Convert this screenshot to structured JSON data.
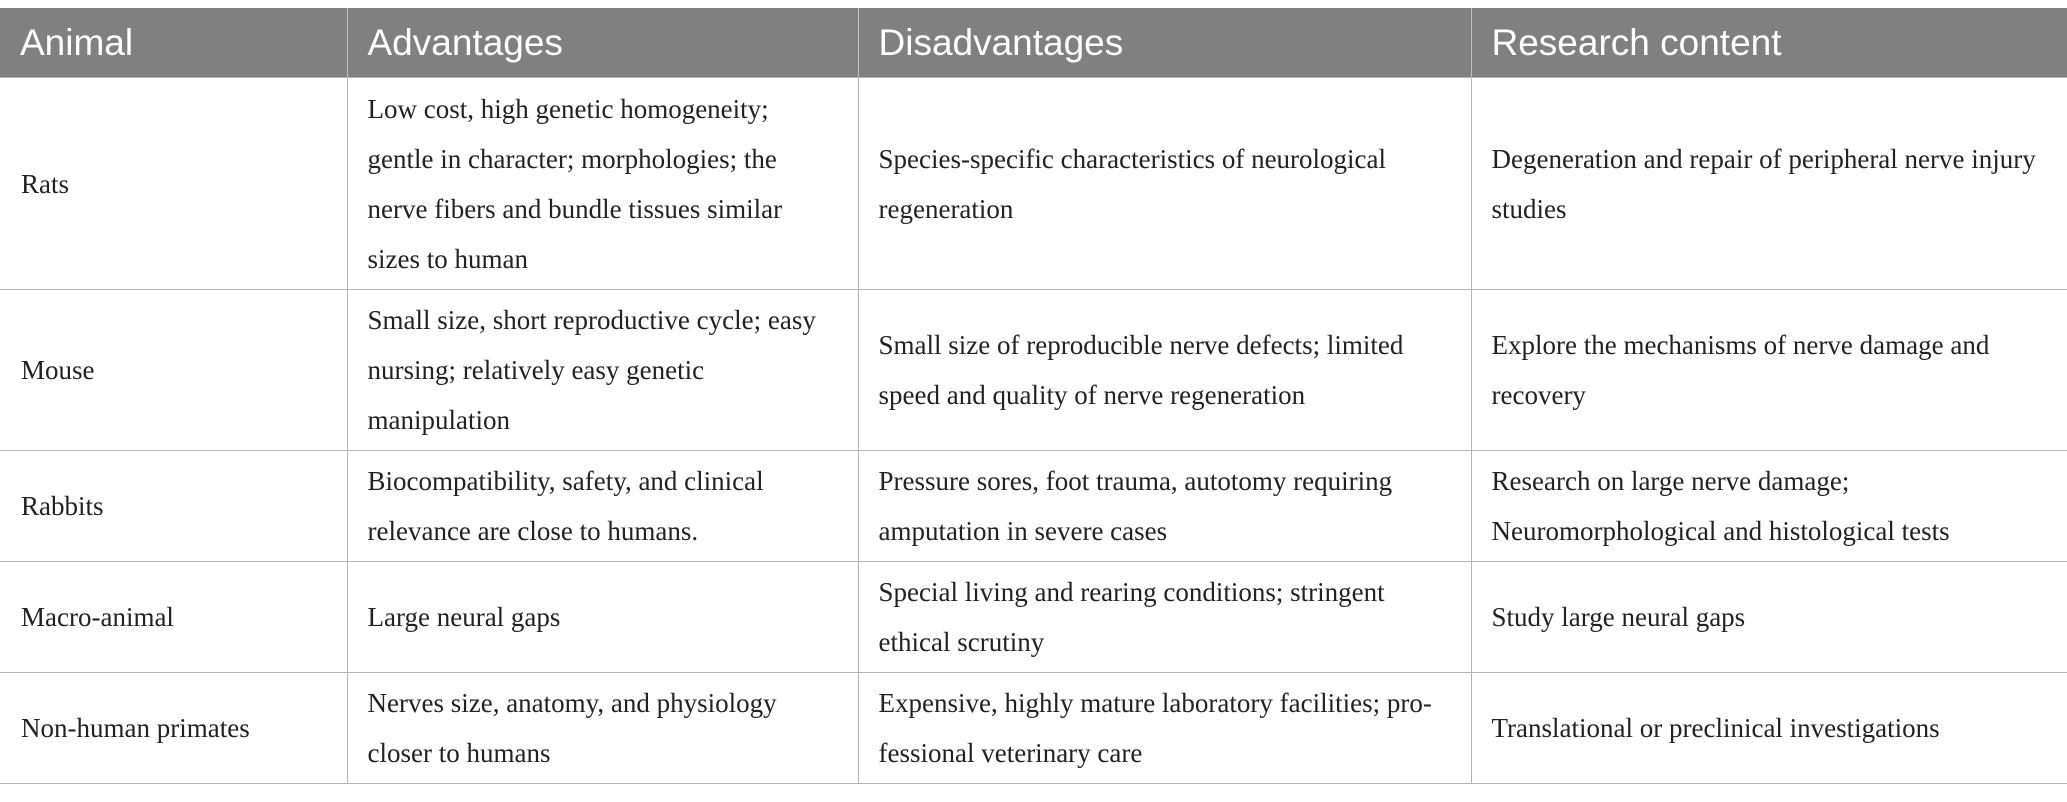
{
  "table": {
    "headers": [
      "Animal",
      "Advantages",
      "Disadvantages",
      "Research content"
    ],
    "rows": [
      {
        "animal": "Rats",
        "advantages": "Low cost, high genetic homogeneity; gentle in character; morphologies; the nerve fibers and bundle tissues similar sizes to human",
        "disadvantages": "Species-specific characteristics of neurological regeneration",
        "research": "Degeneration and repair of peripheral nerve injury studies"
      },
      {
        "animal": "Mouse",
        "advantages": "Small size, short reproductive cycle; easy nursing; relatively easy genetic manipulation",
        "disadvantages": "Small size of reproducible nerve defects; limited speed and quality of nerve regeneration",
        "research": "Explore the mechanisms of nerve damage and recovery"
      },
      {
        "animal": "Rabbits",
        "advantages": "Biocompatibility, safety, and clinical relevance are close to humans.",
        "disadvantages": "Pressure sores, foot trauma, autotomy requiring amputation in severe cases",
        "research": "Research on large nerve damage; Neuromorphological and histological tests"
      },
      {
        "animal": "Macro-animal",
        "advantages": "Large neural gaps",
        "disadvantages": "Special living and rearing conditions; stringent ethical scrutiny",
        "research": "Study large neural gaps"
      },
      {
        "animal": "Non-human primates",
        "advantages": "Nerves size, anatomy, and physiology closer to humans",
        "disadvantages": "Expensive, highly mature laboratory facilities; pro-fessional veterinary care",
        "research": "Translational or preclinical investigations"
      }
    ]
  }
}
